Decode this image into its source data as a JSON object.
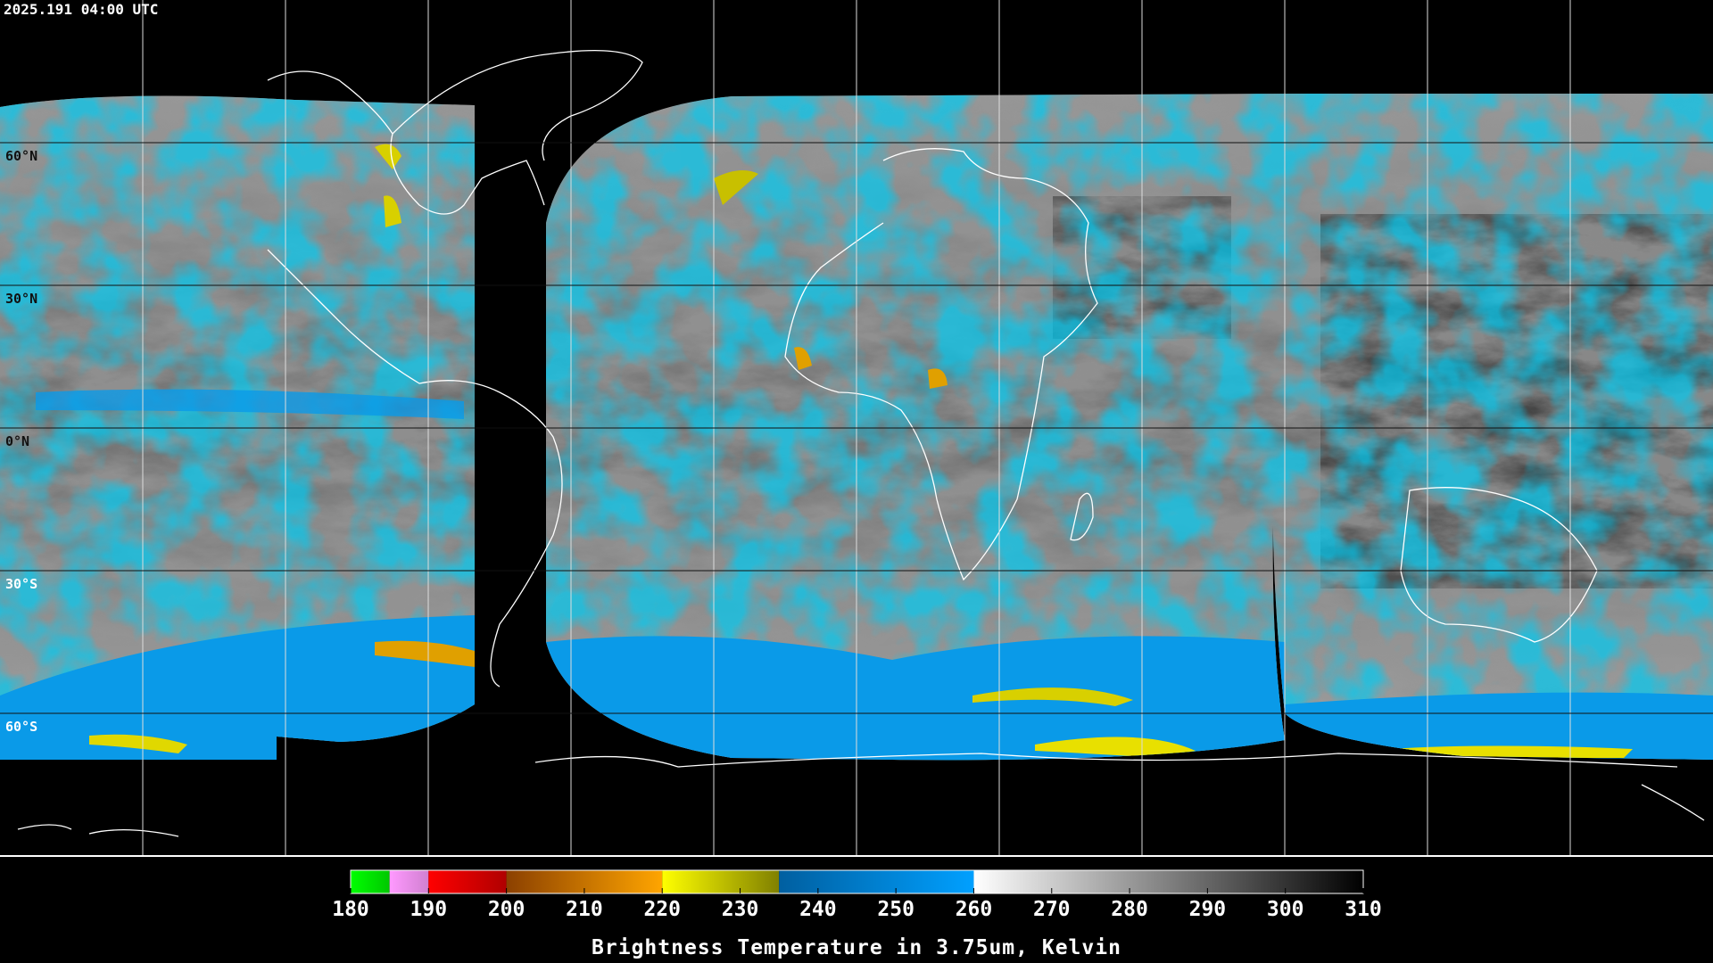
{
  "header": {
    "title": "2025.191 04:00 UTC"
  },
  "map": {
    "latitude_labels": [
      "60°N",
      "30°N",
      "0°N",
      "30°S",
      "60°S"
    ]
  },
  "colorbar": {
    "range": [
      180,
      310
    ],
    "ticks": [
      180,
      190,
      200,
      210,
      220,
      230,
      240,
      250,
      260,
      270,
      280,
      290,
      300,
      310
    ],
    "segments": [
      {
        "from": 180,
        "to": 185,
        "colors": [
          "#00ff00",
          "#00c800"
        ]
      },
      {
        "from": 185,
        "to": 190,
        "colors": [
          "#ff99ff",
          "#d080d0"
        ]
      },
      {
        "from": 190,
        "to": 200,
        "colors": [
          "#ff0000",
          "#b00000"
        ]
      },
      {
        "from": 200,
        "to": 220,
        "colors": [
          "#8b4000",
          "#ffa500"
        ]
      },
      {
        "from": 220,
        "to": 235,
        "colors": [
          "#ffff00",
          "#808000"
        ]
      },
      {
        "from": 235,
        "to": 260,
        "colors": [
          "#005fa0",
          "#00a0ff"
        ]
      },
      {
        "from": 260,
        "to": 310,
        "colors": [
          "#ffffff",
          "#000000"
        ]
      }
    ],
    "label": "Brightness Temperature in 3.75um, Kelvin"
  }
}
